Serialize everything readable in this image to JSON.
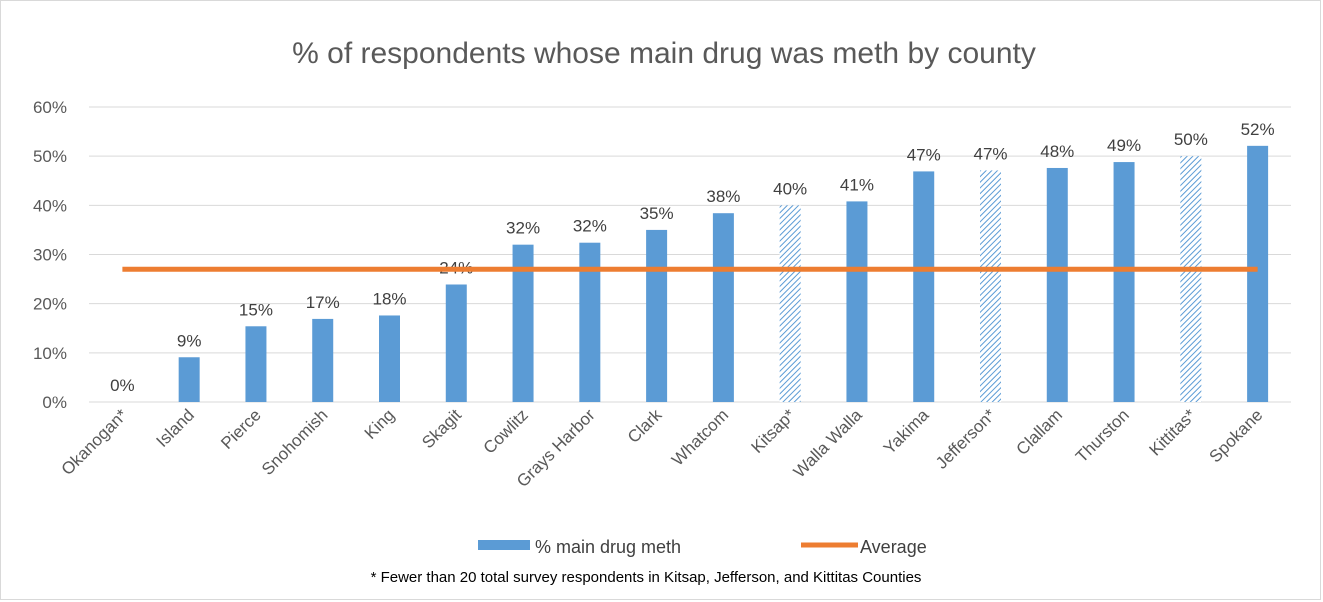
{
  "chart_data": {
    "type": "bar",
    "title": "% of respondents whose main drug was meth by county",
    "xlabel": "",
    "ylabel": "",
    "ylim": [
      0,
      60
    ],
    "y_ticks": [
      "0%",
      "10%",
      "20%",
      "30%",
      "40%",
      "50%",
      "60%"
    ],
    "grid": true,
    "categories": [
      "Okanogan*",
      "Island",
      "Pierce",
      "Snohomish",
      "King",
      "Skagit",
      "Cowlitz",
      "Grays Harbor",
      "Clark",
      "Whatcom",
      "Kitsap*",
      "Walla Walla",
      "Yakima",
      "Jefferson*",
      "Clallam",
      "Thurston",
      "Kittitas*",
      "Spokane"
    ],
    "series": [
      {
        "name": "% main drug meth",
        "type": "bar",
        "color": "#5b9bd5",
        "values": [
          0,
          9.1,
          15.4,
          16.9,
          17.6,
          23.9,
          32.0,
          32.4,
          35.0,
          38.4,
          40.0,
          40.8,
          46.9,
          47.1,
          47.6,
          48.8,
          50.0,
          52.1
        ],
        "data_labels": [
          "0%",
          "9%",
          "15%",
          "17%",
          "18%",
          "24%",
          "32%",
          "32%",
          "35%",
          "38%",
          "40%",
          "41%",
          "47%",
          "47%",
          "48%",
          "49%",
          "50%",
          "52%"
        ],
        "hatched": [
          false,
          false,
          false,
          false,
          false,
          false,
          false,
          false,
          false,
          false,
          true,
          false,
          false,
          true,
          false,
          false,
          true,
          false
        ]
      },
      {
        "name": "Average",
        "type": "line",
        "color": "#ed7d31",
        "value": 27
      }
    ],
    "legend": {
      "position": "bottom"
    },
    "footnote": "* Fewer than 20 total survey respondents in Kitsap, Jefferson, and Kittitas Counties"
  }
}
